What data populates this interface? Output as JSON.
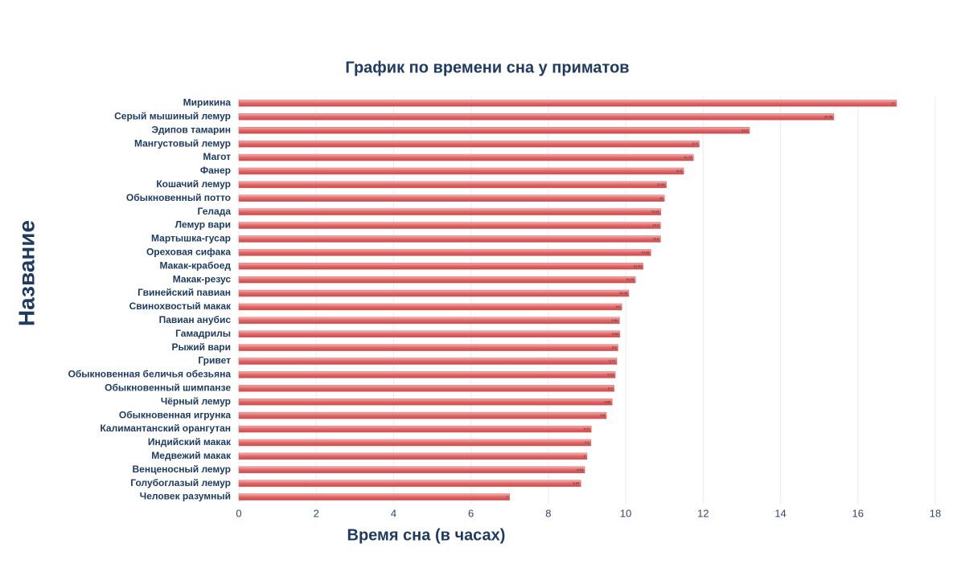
{
  "chart_data": {
    "type": "hbar",
    "title": "График по времени сна у  приматов",
    "x_label": "Время сна (в часах)",
    "y_label": "Название",
    "categories": [
      "Мирикина",
      "Серый мышиный лемур",
      "Эдипов тамарин",
      "Мангустовый лемур",
      "Магот",
      "Фанер",
      "Кошачий лемур",
      "Обыкновенный потто",
      "Гелада",
      "Лемур вари",
      "Мартышка-гусар",
      "Ореховая сифака",
      "Макак-крабоед",
      "Макак-резус",
      "Гвинейский павиан",
      "Свинохвостый макак",
      "Павиан анубис",
      "Гамадрилы",
      "Рыжий вари",
      "Гривет",
      "Обыкновенная беличья обезьяна",
      "Обыкновенный шимпанзе",
      "Чёрный лемур",
      "Обыкновенная игрунка",
      "Калимантанский орангутан",
      "Индийский макак",
      "Медвежий макак",
      "Венценосный лемур",
      "Голубоглазый лемур",
      "Человек разумный"
    ],
    "values": [
      17,
      15.38,
      13.2,
      11.9,
      11.75,
      11.5,
      11.05,
      11,
      10.91,
      10.9,
      10.9,
      10.65,
      10.45,
      10.25,
      10.08,
      9.9,
      9.84,
      9.85,
      9.8,
      9.77,
      9.73,
      9.7,
      9.65,
      9.5,
      9.11,
      9.1,
      9,
      8.94,
      8.84,
      7
    ],
    "color": "#e06666",
    "xlim": [
      0,
      18
    ],
    "xticks": [
      0,
      2,
      4,
      6,
      8,
      10,
      12,
      14,
      16,
      18
    ],
    "grid": true
  }
}
